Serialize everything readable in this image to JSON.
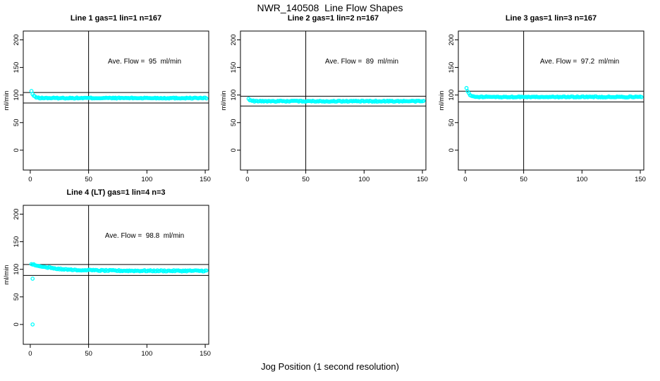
{
  "figure": {
    "main_title": "NWR_140508  Line Flow Shapes",
    "x_axis_caption": "Jog Position (1 second resolution)",
    "background": "#FFFFFF",
    "data_color": "#00FFFF",
    "line_color": "#000000"
  },
  "chart_data": [
    {
      "type": "scatter",
      "title": "Line 1 gas=1 lin=1 n=167",
      "annotation": "Ave. Flow =  95  ml/min",
      "ave_flow": 95,
      "ylabel": "ml/min",
      "xticks": [
        0,
        50,
        100,
        150
      ],
      "yticks": [
        0,
        50,
        100,
        150,
        200
      ],
      "xlim": [
        -6,
        153
      ],
      "ylim": [
        -36,
        216
      ],
      "vline_x": 50,
      "hlines": [
        104.5,
        85.5
      ],
      "annotation_pos": {
        "x": 98,
        "y": 157
      },
      "series": {
        "name": "flow",
        "marker": "open-circle",
        "color": "#00FFFF",
        "x_start": 1,
        "x_end": 151,
        "x_step": 1,
        "start_y": 107,
        "steady_y": 94.5,
        "decay_tau": 1.8,
        "noise_amp": 0.9
      },
      "outliers": []
    },
    {
      "type": "scatter",
      "title": "Line 2 gas=1 lin=2 n=167",
      "annotation": "Ave. Flow =  89  ml/min",
      "ave_flow": 89,
      "ylabel": "ml/min",
      "xticks": [
        0,
        50,
        100,
        150
      ],
      "yticks": [
        0,
        50,
        100,
        150,
        200
      ],
      "xlim": [
        -6,
        153
      ],
      "ylim": [
        -36,
        216
      ],
      "vline_x": 50,
      "hlines": [
        97.9,
        80.1
      ],
      "annotation_pos": {
        "x": 98,
        "y": 157
      },
      "series": {
        "name": "flow",
        "marker": "open-circle",
        "color": "#00FFFF",
        "x_start": 1,
        "x_end": 151,
        "x_step": 1,
        "start_y": 93.5,
        "steady_y": 88.8,
        "decay_tau": 1.5,
        "noise_amp": 0.9
      },
      "outliers": []
    },
    {
      "type": "scatter",
      "title": "Line 3 gas=1 lin=3 n=167",
      "annotation": "Ave. Flow =  97.2  ml/min",
      "ave_flow": 97.2,
      "ylabel": "ml/min",
      "xticks": [
        0,
        50,
        100,
        150
      ],
      "yticks": [
        0,
        50,
        100,
        150,
        200
      ],
      "xlim": [
        -6,
        153
      ],
      "ylim": [
        -36,
        216
      ],
      "vline_x": 50,
      "hlines": [
        106.9,
        87.5
      ],
      "annotation_pos": {
        "x": 98,
        "y": 157
      },
      "series": {
        "name": "flow",
        "marker": "open-circle",
        "color": "#00FFFF",
        "x_start": 1,
        "x_end": 151,
        "x_step": 1,
        "start_y": 112,
        "steady_y": 96.6,
        "decay_tau": 2.2,
        "noise_amp": 0.9
      },
      "outliers": []
    },
    {
      "type": "scatter",
      "title": "Line 4 (LT) gas=1 lin=4 n=3",
      "annotation": "Ave. Flow =  98.8  ml/min",
      "ave_flow": 98.8,
      "ylabel": "ml/min",
      "xticks": [
        0,
        50,
        100,
        150
      ],
      "yticks": [
        0,
        50,
        100,
        150,
        200
      ],
      "xlim": [
        -6,
        153
      ],
      "ylim": [
        -36,
        216
      ],
      "vline_x": 50,
      "hlines": [
        108.7,
        88.9
      ],
      "annotation_pos": {
        "x": 98,
        "y": 157
      },
      "series": {
        "name": "flow",
        "marker": "open-circle",
        "color": "#00FFFF",
        "x_start": 1,
        "x_end": 151,
        "x_step": 1,
        "start_y": 109.5,
        "steady_y": 97.2,
        "decay_tau": 20,
        "noise_amp": 1.1
      },
      "outliers": [
        [
          2,
          83
        ],
        [
          2,
          0
        ]
      ]
    }
  ]
}
